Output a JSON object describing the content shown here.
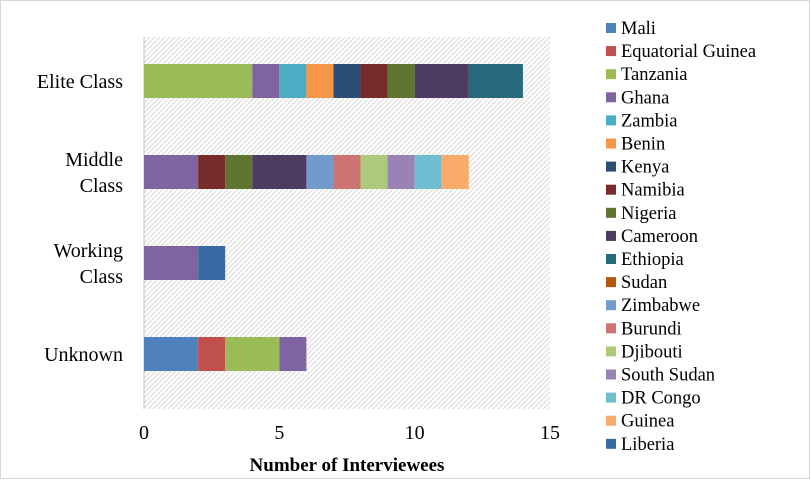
{
  "chart_data": {
    "type": "bar",
    "orientation": "horizontal",
    "stacked": true,
    "categories": [
      "Elite Class",
      "Middle Class",
      "Working Class",
      "Unknown"
    ],
    "category_label_lines": [
      [
        "Elite Class"
      ],
      [
        "Middle",
        "Class"
      ],
      [
        "Working",
        "Class"
      ],
      [
        "Unknown"
      ]
    ],
    "xlabel": "Number of Interviewees",
    "ylabel": "",
    "xlim": [
      0,
      15
    ],
    "xticks": [
      "0",
      "5",
      "10",
      "15"
    ],
    "grid": false,
    "plot_background": "diagonal-hatch",
    "legend_position": "right",
    "series": [
      {
        "name": "Mali",
        "color": "#4f81bd",
        "values": [
          0,
          0,
          0,
          2
        ]
      },
      {
        "name": "Equatorial Guinea",
        "color": "#c0504d",
        "values": [
          0,
          0,
          0,
          1
        ]
      },
      {
        "name": "Tanzania",
        "color": "#9bbb59",
        "values": [
          4,
          0,
          0,
          2
        ]
      },
      {
        "name": "Ghana",
        "color": "#8064a2",
        "values": [
          1,
          2,
          2,
          1
        ]
      },
      {
        "name": "Zambia",
        "color": "#4bacc6",
        "values": [
          1,
          0,
          0,
          0
        ]
      },
      {
        "name": "Benin",
        "color": "#f79646",
        "values": [
          1,
          0,
          0,
          0
        ]
      },
      {
        "name": "Kenya",
        "color": "#2c4d75",
        "values": [
          1,
          0,
          0,
          0
        ]
      },
      {
        "name": "Namibia",
        "color": "#772c2a",
        "values": [
          1,
          1,
          0,
          0
        ]
      },
      {
        "name": "Nigeria",
        "color": "#5f7530",
        "values": [
          1,
          1,
          0,
          0
        ]
      },
      {
        "name": "Cameroon",
        "color": "#4d3b62",
        "values": [
          2,
          2,
          0,
          0
        ]
      },
      {
        "name": "Ethiopia",
        "color": "#276a7c",
        "values": [
          2,
          0,
          0,
          0
        ]
      },
      {
        "name": "Sudan",
        "color": "#b65708",
        "values": [
          0,
          0,
          0,
          0
        ]
      },
      {
        "name": "Zimbabwe",
        "color": "#729aca",
        "values": [
          0,
          1,
          0,
          0
        ]
      },
      {
        "name": "Burundi",
        "color": "#cd7371",
        "values": [
          0,
          1,
          0,
          0
        ]
      },
      {
        "name": "Djibouti",
        "color": "#afc97a",
        "values": [
          0,
          1,
          0,
          0
        ]
      },
      {
        "name": "South Sudan",
        "color": "#9983b5",
        "values": [
          0,
          1,
          0,
          0
        ]
      },
      {
        "name": "DR Congo",
        "color": "#6fbdd1",
        "values": [
          0,
          1,
          0,
          0
        ]
      },
      {
        "name": "Guinea",
        "color": "#f9ab6b",
        "values": [
          0,
          1,
          0,
          0
        ]
      },
      {
        "name": "Liberia",
        "color": "#3a6aa3",
        "values": [
          0,
          0,
          1,
          0
        ]
      }
    ]
  }
}
